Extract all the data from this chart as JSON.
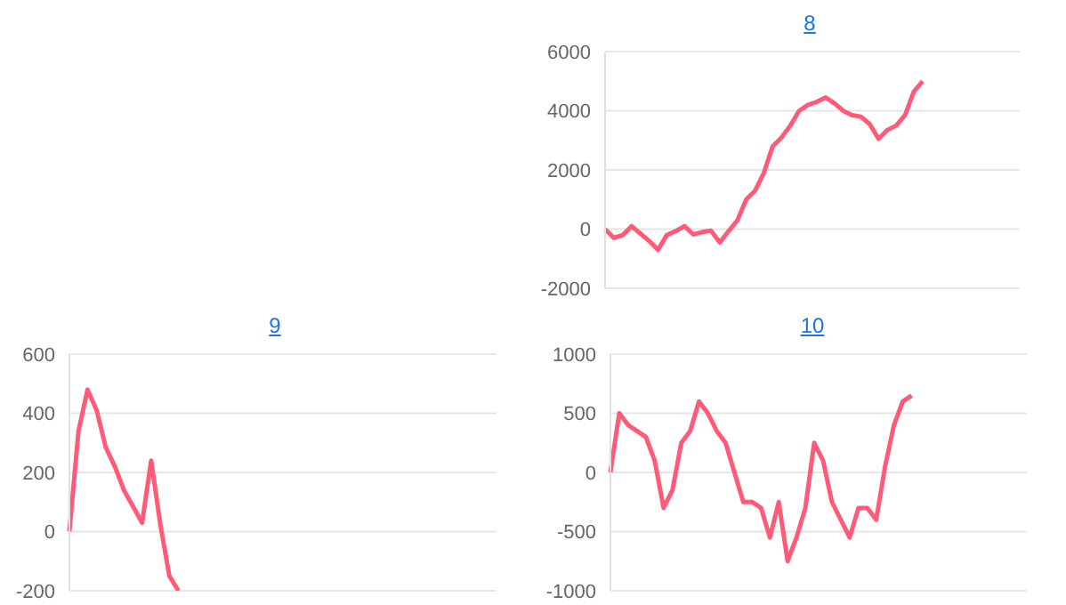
{
  "chart_data": [
    {
      "type": "line",
      "title": "8",
      "categories": [
        null,
        null,
        null,
        null,
        null,
        null,
        null,
        null,
        null,
        null,
        null,
        null,
        null,
        null,
        null,
        null,
        null,
        null,
        null,
        null,
        null,
        null,
        null,
        null,
        null,
        null,
        null,
        null,
        null,
        null,
        null,
        null,
        null,
        null,
        null,
        null,
        null,
        null,
        null,
        null,
        null,
        null,
        null,
        null,
        null,
        null,
        null,
        null
      ],
      "series": [
        {
          "color": "#ff5a78",
          "values": [
            0,
            -300,
            -200,
            100,
            -150,
            -400,
            -700,
            -200,
            -70,
            100,
            -180,
            -100,
            -50,
            -450,
            -70,
            300,
            1000,
            1300,
            1900,
            2800,
            3100,
            3500,
            4000,
            4200,
            4300,
            4450,
            4250,
            4000,
            3850,
            3800,
            3550,
            3050,
            3350,
            3500,
            3850,
            4650,
            5000,
            null,
            null,
            null,
            null,
            null,
            null,
            null,
            null,
            null,
            null,
            null
          ]
        }
      ],
      "ylim": [
        -2000,
        6000
      ],
      "yticks": [
        -2000,
        0,
        2000,
        4000,
        6000
      ],
      "grid": "y",
      "tick_labels": "y"
    },
    {
      "type": "line",
      "title": "9",
      "categories": [
        null,
        null,
        null,
        null,
        null,
        null,
        null,
        null,
        null,
        null,
        null,
        null,
        null,
        null,
        null,
        null,
        null,
        null,
        null,
        null,
        null,
        null,
        null,
        null,
        null,
        null,
        null,
        null,
        null,
        null,
        null,
        null,
        null,
        null,
        null,
        null,
        null,
        null,
        null,
        null,
        null,
        null,
        null,
        null,
        null,
        null,
        null,
        null
      ],
      "series": [
        {
          "color": "#ff5a78",
          "values": [
            0,
            340,
            480,
            410,
            285,
            220,
            140,
            85,
            30,
            240,
            25,
            -150,
            -200,
            null,
            null,
            null,
            null,
            null,
            null,
            null,
            null,
            null,
            null,
            null,
            null,
            null,
            null,
            null,
            null,
            null,
            null,
            null,
            null,
            null,
            null,
            null,
            null,
            null,
            null,
            null,
            null,
            null,
            null,
            null,
            null,
            null,
            null,
            null
          ]
        }
      ],
      "ylim": [
        -200,
        600
      ],
      "yticks": [
        -200,
        0,
        200,
        400,
        600
      ],
      "grid": "y",
      "tick_labels": "y"
    },
    {
      "type": "line",
      "title": "10",
      "categories": [
        null,
        null,
        null,
        null,
        null,
        null,
        null,
        null,
        null,
        null,
        null,
        null,
        null,
        null,
        null,
        null,
        null,
        null,
        null,
        null,
        null,
        null,
        null,
        null,
        null,
        null,
        null,
        null,
        null,
        null,
        null,
        null,
        null,
        null,
        null,
        null,
        null,
        null,
        null,
        null,
        null,
        null,
        null,
        null,
        null,
        null,
        null,
        null
      ],
      "series": [
        {
          "color": "#ff5a78",
          "values": [
            0,
            500,
            400,
            350,
            300,
            100,
            -300,
            -150,
            250,
            350,
            600,
            500,
            350,
            250,
            0,
            -250,
            -250,
            -300,
            -550,
            -250,
            -750,
            -550,
            -300,
            250,
            100,
            -250,
            -400,
            -550,
            -300,
            -300,
            -400,
            50,
            400,
            600,
            650,
            null,
            null,
            null,
            null,
            null,
            null,
            null,
            null,
            null,
            null,
            null,
            null,
            null
          ]
        }
      ],
      "ylim": [
        -1000,
        1000
      ],
      "yticks": [
        -1000,
        -500,
        0,
        500,
        1000
      ],
      "grid": "y",
      "tick_labels": "y"
    }
  ]
}
